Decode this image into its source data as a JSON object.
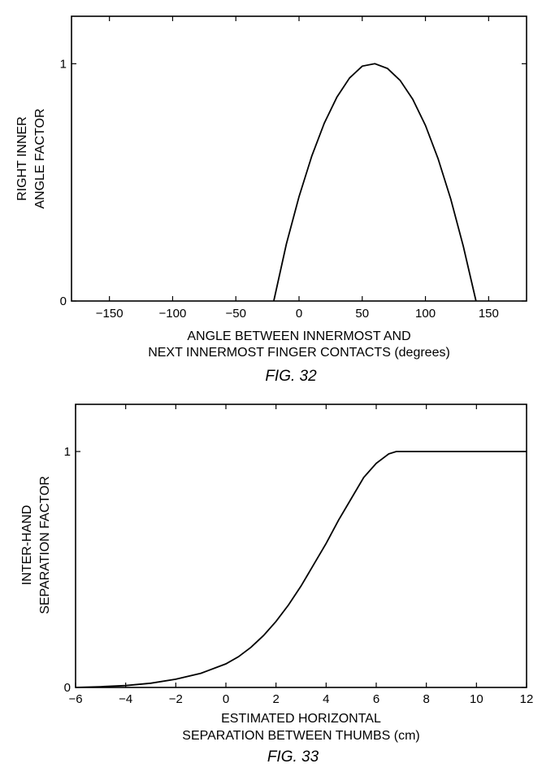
{
  "chart_data": [
    {
      "type": "line",
      "caption": "FIG. 32",
      "xlabel": [
        "ANGLE BETWEEN INNERMOST AND",
        "NEXT INNERMOST FINGER CONTACTS (degrees)"
      ],
      "ylabel": [
        "RIGHT INNER",
        "ANGLE FACTOR"
      ],
      "xlim": [
        -180,
        180
      ],
      "ylim": [
        0,
        1.2
      ],
      "xticks": [
        -150,
        -100,
        -50,
        0,
        50,
        100,
        150
      ],
      "yticks": [
        0,
        1
      ],
      "grid": false,
      "series": [
        {
          "x": [
            -20,
            -10,
            0,
            10,
            20,
            30,
            40,
            50,
            60,
            70,
            80,
            90,
            100,
            110,
            120,
            130,
            140
          ],
          "y": [
            0,
            0.24,
            0.44,
            0.61,
            0.75,
            0.86,
            0.94,
            0.99,
            1.0,
            0.98,
            0.93,
            0.85,
            0.74,
            0.6,
            0.43,
            0.23,
            0
          ]
        }
      ]
    },
    {
      "type": "line",
      "caption": "FIG. 33",
      "xlabel": [
        "ESTIMATED HORIZONTAL",
        "SEPARATION BETWEEN THUMBS (cm)"
      ],
      "ylabel": [
        "INTER-HAND",
        "SEPARATION FACTOR"
      ],
      "xlim": [
        -6,
        12
      ],
      "ylim": [
        0,
        1.2
      ],
      "xticks": [
        -6,
        -4,
        -2,
        0,
        2,
        4,
        6,
        8,
        10,
        12
      ],
      "yticks": [
        0,
        1
      ],
      "grid": false,
      "series": [
        {
          "x": [
            -6,
            -5,
            -4,
            -3,
            -2,
            -1,
            0,
            0.5,
            1,
            1.5,
            2,
            2.5,
            3,
            3.5,
            4,
            4.5,
            5,
            5.5,
            6,
            6.5,
            6.8,
            7,
            8,
            9,
            10,
            11,
            12
          ],
          "y": [
            0,
            0.003,
            0.008,
            0.018,
            0.035,
            0.06,
            0.1,
            0.13,
            0.17,
            0.22,
            0.28,
            0.35,
            0.43,
            0.52,
            0.61,
            0.71,
            0.8,
            0.89,
            0.95,
            0.99,
            1.0,
            1.0,
            1.0,
            1.0,
            1.0,
            1.0,
            1.0
          ]
        }
      ]
    }
  ]
}
